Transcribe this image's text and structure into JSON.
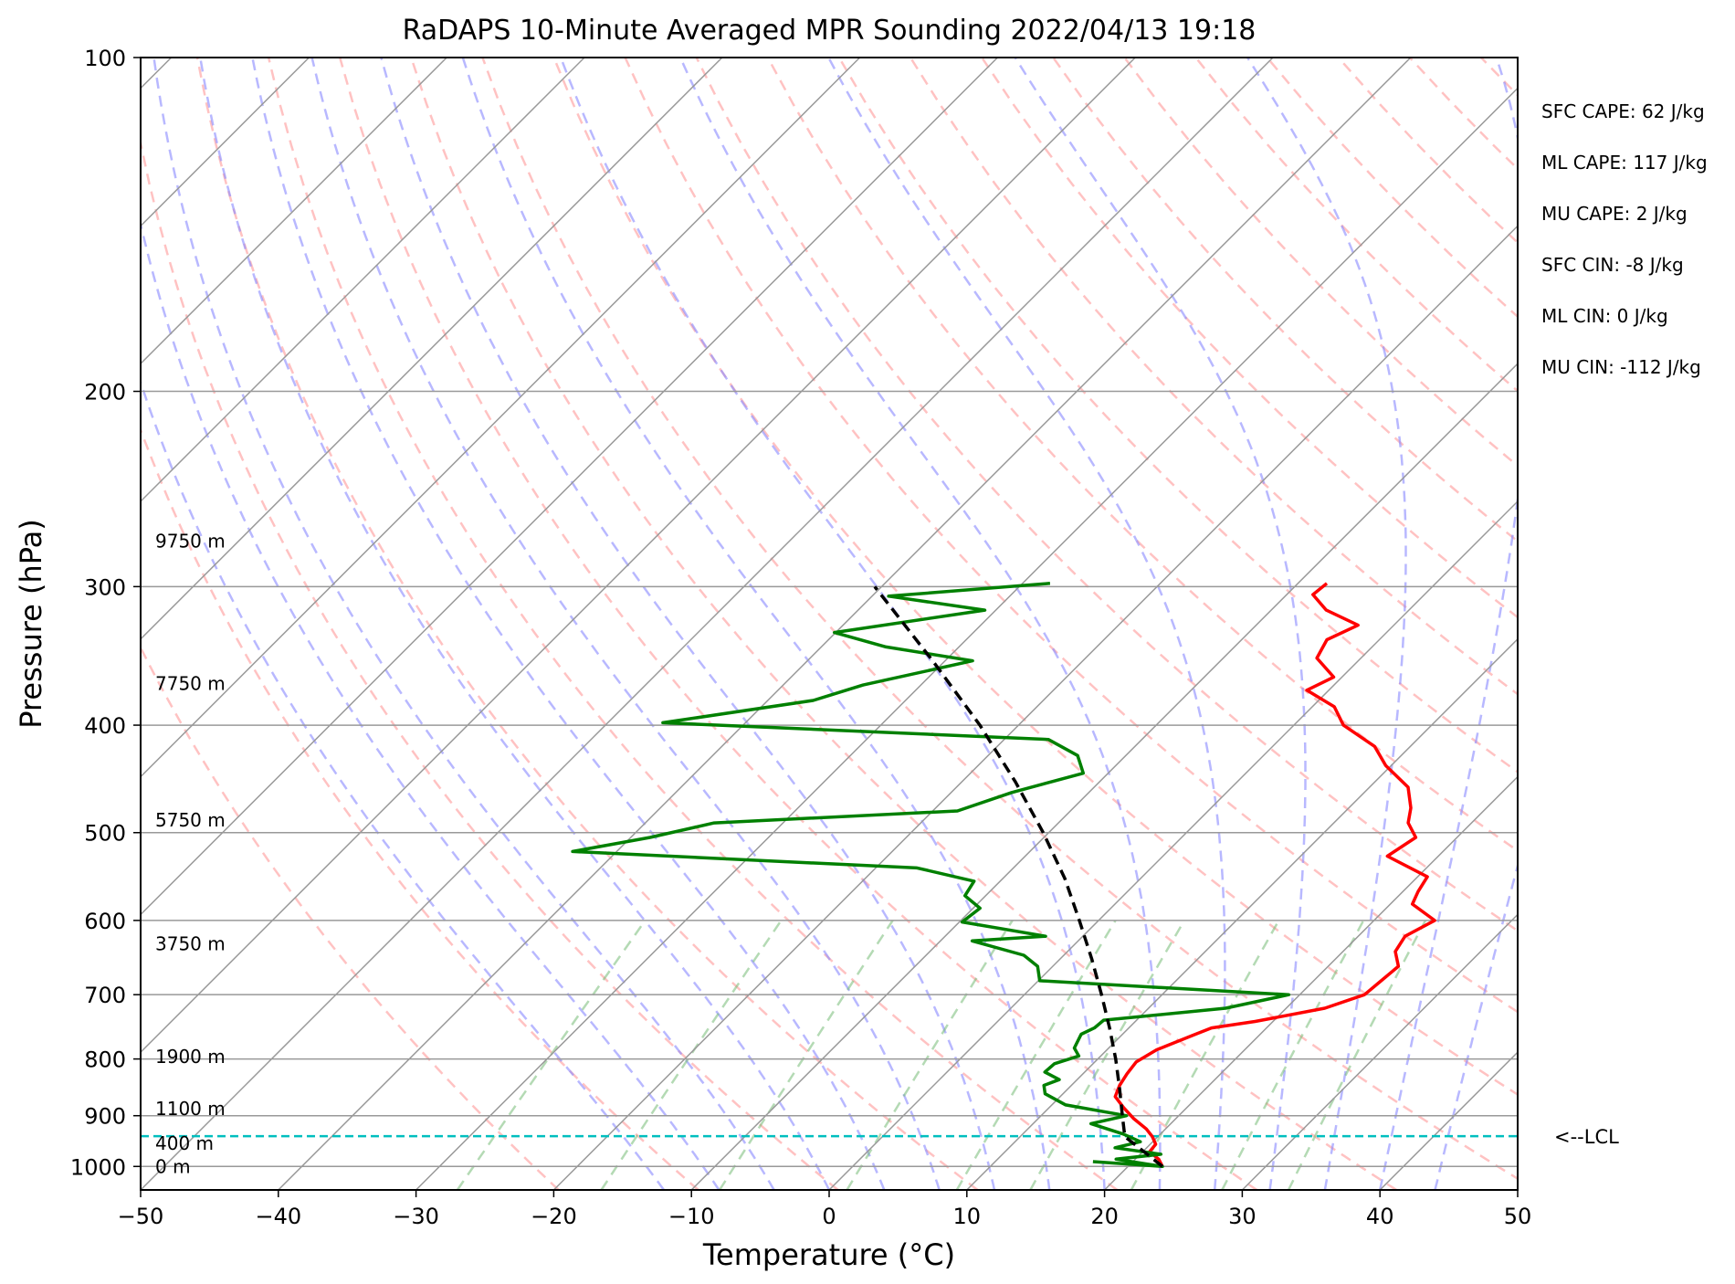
{
  "chart_data": {
    "type": "line",
    "title": "RaDAPS 10-Minute Averaged MPR Sounding 2022/04/13 19:18",
    "xlabel": "Temperature (°C)",
    "ylabel": "Pressure (hPa)",
    "xlim": [
      -50,
      50
    ],
    "ylim": [
      1050,
      100
    ],
    "y_scale": "log",
    "skew_degrees": 45,
    "grid": true,
    "x_ticks": [
      "−50",
      "−40",
      "−30",
      "−20",
      "−10",
      "0",
      "10",
      "20",
      "30",
      "40",
      "50"
    ],
    "y_ticks": [
      "100",
      "200",
      "300",
      "400",
      "500",
      "600",
      "700",
      "800",
      "900",
      "1000"
    ],
    "colors": {
      "temperature": "#ff0000",
      "dewpoint": "#008000",
      "parcel": "#000000",
      "lcl": "#00bfbf",
      "dry_adiabats": "#ff9999",
      "moist_adiabats": "#8888ff",
      "mixing_ratio": "#77bb77",
      "isotherms": "#999999"
    },
    "series": [
      {
        "key": "temperature",
        "points": [
          {
            "p": 1000,
            "t": 22.5
          },
          {
            "p": 985,
            "t": 21.7
          },
          {
            "p": 970,
            "t": 20.5
          },
          {
            "p": 955,
            "t": 20.4
          },
          {
            "p": 940,
            "t": 19.6
          },
          {
            "p": 925,
            "t": 18.6
          },
          {
            "p": 905,
            "t": 16.9
          },
          {
            "p": 885,
            "t": 15.4
          },
          {
            "p": 865,
            "t": 14.0
          },
          {
            "p": 845,
            "t": 13.5
          },
          {
            "p": 825,
            "t": 13.2
          },
          {
            "p": 805,
            "t": 13.0
          },
          {
            "p": 785,
            "t": 13.6
          },
          {
            "p": 760,
            "t": 15.3
          },
          {
            "p": 750,
            "t": 16.0
          },
          {
            "p": 740,
            "t": 18.7
          },
          {
            "p": 720,
            "t": 22.8
          },
          {
            "p": 700,
            "t": 24.7
          },
          {
            "p": 680,
            "t": 24.9
          },
          {
            "p": 660,
            "t": 25.1
          },
          {
            "p": 640,
            "t": 23.8
          },
          {
            "p": 620,
            "t": 23.4
          },
          {
            "p": 600,
            "t": 24.4
          },
          {
            "p": 580,
            "t": 21.6
          },
          {
            "p": 565,
            "t": 21.1
          },
          {
            "p": 548,
            "t": 20.7
          },
          {
            "p": 525,
            "t": 16.3
          },
          {
            "p": 505,
            "t": 17.0
          },
          {
            "p": 490,
            "t": 15.4
          },
          {
            "p": 475,
            "t": 14.5
          },
          {
            "p": 455,
            "t": 12.8
          },
          {
            "p": 435,
            "t": 9.6
          },
          {
            "p": 418,
            "t": 7.4
          },
          {
            "p": 400,
            "t": 3.6
          },
          {
            "p": 385,
            "t": 1.6
          },
          {
            "p": 372,
            "t": -1.6
          },
          {
            "p": 362,
            "t": -0.6
          },
          {
            "p": 348,
            "t": -3.2
          },
          {
            "p": 335,
            "t": -3.8
          },
          {
            "p": 325,
            "t": -2.6
          },
          {
            "p": 315,
            "t": -6.0
          },
          {
            "p": 305,
            "t": -8.1
          },
          {
            "p": 298,
            "t": -7.9
          }
        ]
      },
      {
        "key": "dewpoint",
        "points": [
          {
            "p": 990,
            "t": 17.1
          },
          {
            "p": 1000,
            "t": 22.5
          },
          {
            "p": 985,
            "t": 18.6
          },
          {
            "p": 975,
            "t": 21.5
          },
          {
            "p": 962,
            "t": 17.7
          },
          {
            "p": 950,
            "t": 19.1
          },
          {
            "p": 935,
            "t": 17.3
          },
          {
            "p": 915,
            "t": 14.2
          },
          {
            "p": 900,
            "t": 16.2
          },
          {
            "p": 880,
            "t": 11.0
          },
          {
            "p": 860,
            "t": 8.7
          },
          {
            "p": 845,
            "t": 8.0
          },
          {
            "p": 835,
            "t": 8.7
          },
          {
            "p": 822,
            "t": 7.1
          },
          {
            "p": 808,
            "t": 7.2
          },
          {
            "p": 795,
            "t": 8.4
          },
          {
            "p": 782,
            "t": 7.5
          },
          {
            "p": 760,
            "t": 7.0
          },
          {
            "p": 750,
            "t": 7.5
          },
          {
            "p": 738,
            "t": 7.6
          },
          {
            "p": 720,
            "t": 15.6
          },
          {
            "p": 700,
            "t": 19.2
          },
          {
            "p": 680,
            "t": 0.1
          },
          {
            "p": 660,
            "t": -1.1
          },
          {
            "p": 645,
            "t": -2.9
          },
          {
            "p": 626,
            "t": -7.7
          },
          {
            "p": 620,
            "t": -2.7
          },
          {
            "p": 602,
            "t": -9.8
          },
          {
            "p": 585,
            "t": -9.5
          },
          {
            "p": 570,
            "t": -11.5
          },
          {
            "p": 553,
            "t": -11.9
          },
          {
            "p": 538,
            "t": -17.0
          },
          {
            "p": 520,
            "t": -43.2
          },
          {
            "p": 505,
            "t": -38.6
          },
          {
            "p": 490,
            "t": -35.0
          },
          {
            "p": 478,
            "t": -18.2
          },
          {
            "p": 460,
            "t": -15.6
          },
          {
            "p": 442,
            "t": -11.8
          },
          {
            "p": 426,
            "t": -13.5
          },
          {
            "p": 412,
            "t": -16.8
          },
          {
            "p": 398,
            "t": -46.0
          },
          {
            "p": 380,
            "t": -36.7
          },
          {
            "p": 368,
            "t": -34.2
          },
          {
            "p": 350,
            "t": -28.0
          },
          {
            "p": 340,
            "t": -35.3
          },
          {
            "p": 330,
            "t": -40.1
          },
          {
            "p": 315,
            "t": -30.8
          },
          {
            "p": 306,
            "t": -38.8
          },
          {
            "p": 298,
            "t": -28.0
          }
        ]
      },
      {
        "key": "parcel",
        "points": [
          {
            "p": 1000,
            "t": 22.5
          },
          {
            "p": 970,
            "t": 20.1
          },
          {
            "p": 940,
            "t": 17.6
          },
          {
            "p": 900,
            "t": 15.9
          },
          {
            "p": 850,
            "t": 13.7
          },
          {
            "p": 800,
            "t": 11.3
          },
          {
            "p": 750,
            "t": 8.6
          },
          {
            "p": 700,
            "t": 5.6
          },
          {
            "p": 650,
            "t": 2.3
          },
          {
            "p": 600,
            "t": -1.4
          },
          {
            "p": 550,
            "t": -5.5
          },
          {
            "p": 500,
            "t": -10.4
          },
          {
            "p": 450,
            "t": -16.1
          },
          {
            "p": 400,
            "t": -22.8
          },
          {
            "p": 350,
            "t": -30.9
          },
          {
            "p": 300,
            "t": -40.5
          }
        ]
      }
    ],
    "lcl_hpa": 939,
    "lcl_label": "<--LCL",
    "height_labels": [
      {
        "p": 1000,
        "text": "0 m"
      },
      {
        "p": 953,
        "text": "400 m"
      },
      {
        "p": 887,
        "text": "1100 m"
      },
      {
        "p": 796,
        "text": "1900 m"
      },
      {
        "p": 630,
        "text": "3750 m"
      },
      {
        "p": 487,
        "text": "5750 m"
      },
      {
        "p": 367,
        "text": "7750 m"
      },
      {
        "p": 273,
        "text": "9750 m"
      }
    ],
    "indices": [
      "SFC CAPE: 62 J/kg",
      "ML CAPE: 117 J/kg",
      "MU CAPE: 2 J/kg",
      "SFC CIN: -8 J/kg",
      "ML CIN: 0 J/kg",
      "MU CIN: -112 J/kg"
    ]
  }
}
